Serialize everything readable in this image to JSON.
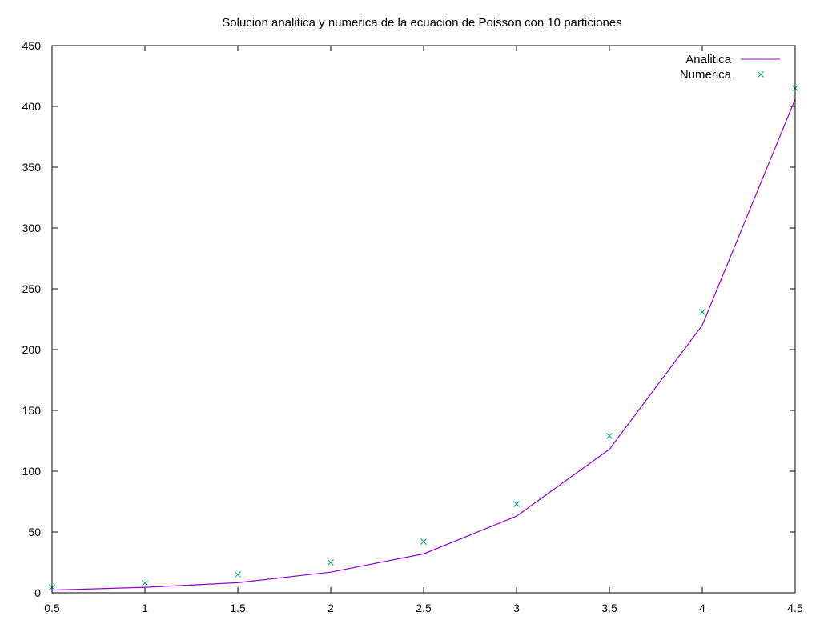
{
  "chart_data": {
    "type": "line",
    "title": "Solucion analitica y numerica de la ecuacion de Poisson con 10 particiones",
    "xlabel": "",
    "ylabel": "",
    "xlim": [
      0.5,
      4.5
    ],
    "ylim": [
      0,
      450
    ],
    "xticks": [
      "0.5",
      "1",
      "1.5",
      "2",
      "2.5",
      "3",
      "3.5",
      "4",
      "4.5"
    ],
    "yticks": [
      "0",
      "50",
      "100",
      "150",
      "200",
      "250",
      "300",
      "350",
      "400",
      "450"
    ],
    "grid": false,
    "legend_position": "top-right",
    "series": [
      {
        "name": "Analitica",
        "style": "line",
        "color": "#9400d3",
        "x": [
          0.5,
          1,
          1.5,
          2,
          2.5,
          3,
          3.5,
          4,
          4.5
        ],
        "y": [
          2.2,
          4.5,
          8.3,
          17,
          32,
          63,
          118,
          220,
          406
        ]
      },
      {
        "name": "Numerica",
        "style": "points-x",
        "color": "#009e73",
        "x": [
          0.5,
          1,
          1.5,
          2,
          2.5,
          3,
          3.5,
          4,
          4.5
        ],
        "y": [
          4.5,
          8,
          15,
          25,
          42,
          73,
          129,
          231,
          415
        ]
      }
    ]
  }
}
